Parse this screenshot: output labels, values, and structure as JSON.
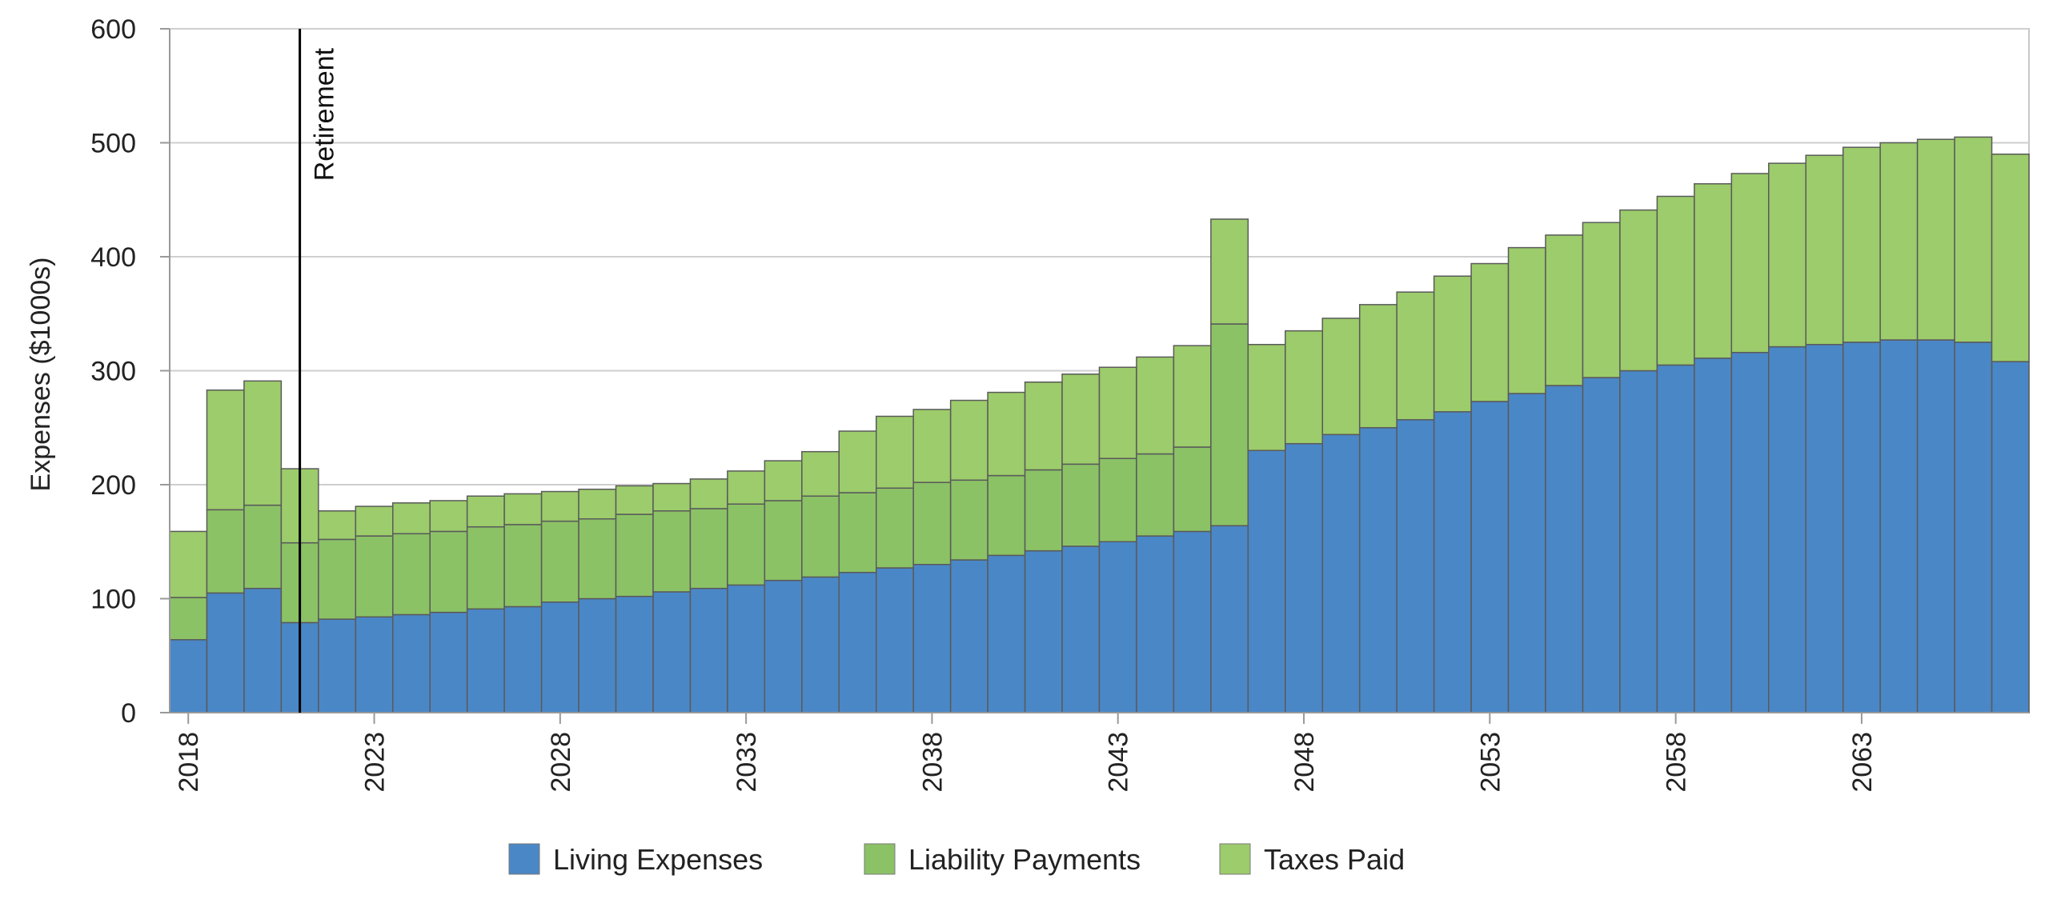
{
  "chart_data": {
    "type": "bar",
    "stacked": true,
    "title": "",
    "xlabel": "",
    "ylabel": "Expenses ($1000s)",
    "ylim": [
      0,
      600
    ],
    "yticks": [
      "0",
      "100",
      "200",
      "300",
      "400",
      "500",
      "600"
    ],
    "xtick_labels": [
      "2018",
      "2023",
      "2028",
      "2033",
      "2038",
      "2043",
      "2048",
      "2053",
      "2058",
      "2063"
    ],
    "grid": "horizontal",
    "legend_position": "bottom",
    "categories": [
      "2018",
      "2019",
      "2020",
      "2021",
      "2022",
      "2023",
      "2024",
      "2025",
      "2026",
      "2027",
      "2028",
      "2029",
      "2030",
      "2031",
      "2032",
      "2033",
      "2034",
      "2035",
      "2036",
      "2037",
      "2038",
      "2039",
      "2040",
      "2041",
      "2042",
      "2043",
      "2044",
      "2045",
      "2046",
      "2047",
      "2048",
      "2049",
      "2050",
      "2051",
      "2052",
      "2053",
      "2054",
      "2055",
      "2056",
      "2057",
      "2058",
      "2059",
      "2060",
      "2061",
      "2062",
      "2063",
      "2064",
      "2065",
      "2066",
      "2067"
    ],
    "series": [
      {
        "name": "Living Expenses",
        "color": "#4a87c7",
        "values": [
          64,
          105,
          109,
          79,
          82,
          84,
          86,
          88,
          91,
          93,
          97,
          100,
          102,
          106,
          109,
          112,
          116,
          119,
          123,
          127,
          130,
          134,
          138,
          142,
          146,
          150,
          155,
          159,
          164,
          230,
          236,
          244,
          250,
          257,
          264,
          273,
          280,
          287,
          294,
          300,
          305,
          311,
          316,
          321,
          323,
          325,
          327,
          327,
          325,
          308
        ]
      },
      {
        "name": "Liability Payments",
        "color": "#8bc266",
        "values": [
          37,
          73,
          73,
          70,
          70,
          71,
          71,
          71,
          72,
          72,
          71,
          70,
          72,
          71,
          70,
          71,
          70,
          71,
          70,
          70,
          72,
          70,
          70,
          71,
          72,
          73,
          72,
          74,
          177,
          0,
          0,
          0,
          0,
          0,
          0,
          0,
          0,
          0,
          0,
          0,
          0,
          0,
          0,
          0,
          0,
          0,
          0,
          0,
          0,
          0
        ]
      },
      {
        "name": "Taxes Paid",
        "color": "#9ccc6b",
        "values": [
          58,
          105,
          109,
          65,
          25,
          26,
          27,
          27,
          27,
          27,
          26,
          26,
          25,
          24,
          26,
          29,
          35,
          39,
          54,
          63,
          64,
          70,
          73,
          77,
          79,
          80,
          85,
          89,
          92,
          93,
          99,
          102,
          108,
          112,
          119,
          121,
          128,
          132,
          136,
          141,
          148,
          153,
          157,
          161,
          166,
          171,
          173,
          176,
          180,
          182
        ]
      }
    ],
    "annotations": [
      {
        "type": "vline",
        "x": 2021.5,
        "label": "Retirement"
      }
    ]
  }
}
